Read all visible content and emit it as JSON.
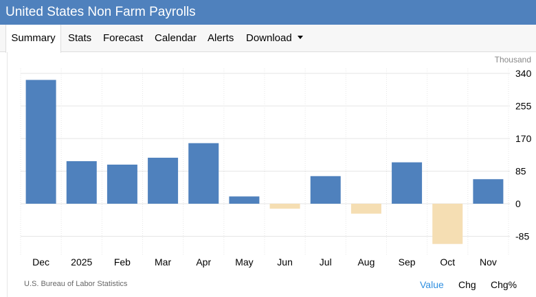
{
  "header": {
    "title": "United States Non Farm Payrolls"
  },
  "tabs": [
    {
      "label": "Summary",
      "active": true
    },
    {
      "label": "Stats"
    },
    {
      "label": "Forecast"
    },
    {
      "label": "Calendar"
    },
    {
      "label": "Alerts"
    },
    {
      "label": "Download",
      "has_dropdown": true,
      "icon": "caret-down-icon"
    }
  ],
  "chart_data": {
    "type": "bar",
    "unit": "Thousand",
    "categories": [
      "Dec",
      "2025",
      "Feb",
      "Mar",
      "Apr",
      "May",
      "Jun",
      "Jul",
      "Aug",
      "Sep",
      "Oct",
      "Nov"
    ],
    "values": [
      323,
      111,
      102,
      120,
      158,
      19,
      -13,
      72,
      -26,
      108,
      -105,
      64
    ],
    "yticks": [
      340,
      255,
      170,
      85,
      0,
      -85
    ],
    "ylim": [
      -145,
      345
    ],
    "colors": {
      "positive": "#4f81bd",
      "negative": "#f5deb3",
      "grid": "#e6e6e6"
    },
    "grid": true
  },
  "footer": {
    "source": "U.S. Bureau of Labor Statistics",
    "view_tabs": [
      {
        "label": "Value",
        "active": true
      },
      {
        "label": "Chg"
      },
      {
        "label": "Chg%"
      }
    ]
  }
}
